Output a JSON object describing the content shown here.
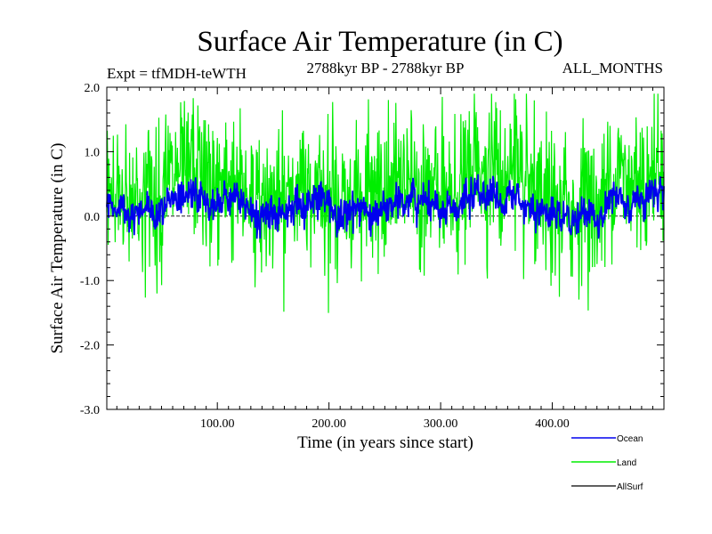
{
  "chart_data": {
    "type": "line",
    "title": "Surface Air Temperature (in C)",
    "subtitle_left": "Expt = tfMDH-teWTH",
    "subtitle_center": "2788kyr BP - 2788kyr BP",
    "subtitle_right": "ALL_MONTHS",
    "xlabel": "Time (in years since start)",
    "ylabel": "Surface Air Temperature (in C)",
    "xlim": [
      1,
      500
    ],
    "ylim": [
      -3.0,
      2.0
    ],
    "x_ticks": [
      100,
      200,
      300,
      400
    ],
    "x_tick_labels": [
      "100.00",
      "200.00",
      "300.00",
      "400.00"
    ],
    "y_ticks": [
      -3,
      -2,
      -1,
      0,
      1,
      2
    ],
    "y_tick_labels": [
      "-3.0",
      "-2.0",
      "-1.0",
      "0.0",
      "1.0",
      "2.0"
    ],
    "reference_line": 0.0,
    "series": [
      {
        "name": "Land",
        "color": "#00ee00",
        "mean": 0.4,
        "noise_amplitude": 0.55,
        "observed_min": -2.0,
        "observed_max": 1.9
      },
      {
        "name": "Ocean",
        "color": "#0000ee",
        "mean": 0.15,
        "noise_amplitude": 0.13,
        "observed_min": -0.35,
        "observed_max": 0.65
      },
      {
        "name": "AllSurf",
        "color": "#000000",
        "mean": 0.2,
        "noise_amplitude": 0.2
      }
    ],
    "legend": [
      {
        "label": "Ocean",
        "color": "#0000ee"
      },
      {
        "label": "Land",
        "color": "#00ee00"
      },
      {
        "label": "AllSurf",
        "color": "#000000"
      }
    ],
    "legend_position": "bottom-right"
  }
}
